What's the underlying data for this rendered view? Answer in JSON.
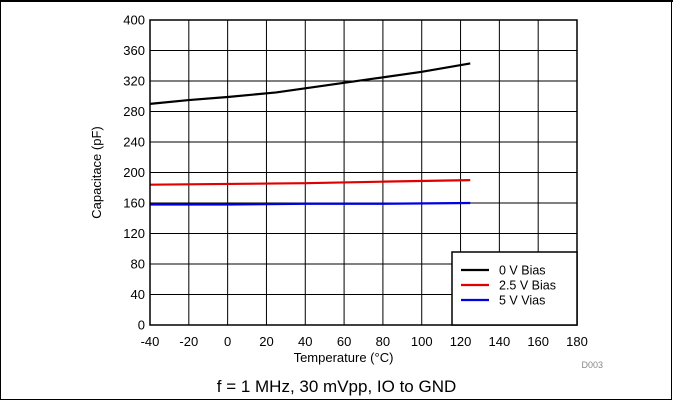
{
  "chart_data": {
    "type": "line",
    "xlabel": "Temperature (°C)",
    "ylabel": "Capacitace (pF)",
    "xlim": [
      -40,
      180
    ],
    "ylim": [
      0,
      400
    ],
    "xticks": [
      -40,
      -20,
      0,
      20,
      40,
      60,
      80,
      100,
      120,
      140,
      160,
      180
    ],
    "yticks": [
      0,
      40,
      80,
      120,
      160,
      200,
      240,
      280,
      320,
      360,
      400
    ],
    "grid": true,
    "legend_position": "bottom-right",
    "series": [
      {
        "name": "0 V Bias",
        "color": "#000000",
        "x": [
          -40,
          -20,
          0,
          25,
          50,
          75,
          100,
          125
        ],
        "y": [
          290,
          295,
          299,
          305,
          314,
          323,
          332,
          343
        ]
      },
      {
        "name": "2.5 V Bias",
        "color": "#e00000",
        "x": [
          -40,
          0,
          40,
          80,
          125
        ],
        "y": [
          184,
          185,
          186,
          188,
          190
        ]
      },
      {
        "name": "5 V Vias",
        "color": "#0000e0",
        "x": [
          -40,
          0,
          40,
          80,
          125
        ],
        "y": [
          158,
          158,
          159,
          159,
          160
        ]
      }
    ],
    "figure_id": "D003"
  },
  "caption": "f = 1 MHz, 30 mVpp, IO to GND"
}
